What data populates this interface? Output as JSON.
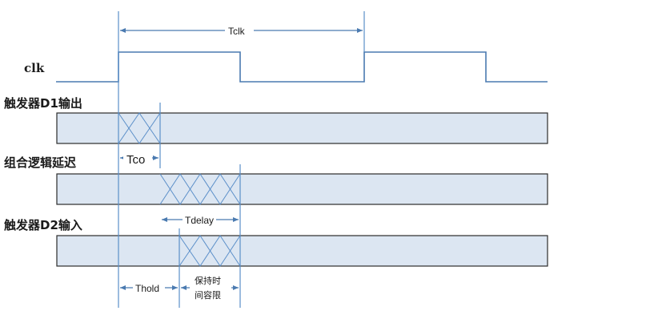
{
  "signals": {
    "clk": "clk",
    "d1_out": "触发器D1输出",
    "logic_delay": "组合逻辑延迟",
    "d2_in": "触发器D2输入"
  },
  "timings": {
    "tclk": "Tclk",
    "tco": "Tco",
    "tdelay": "Tdelay",
    "thold": "Thold",
    "hold_margin_line1": "保持时",
    "hold_margin_line2": "间容限"
  },
  "colors": {
    "waveform": "#4a7ab0",
    "bus_fill": "#dce6f2",
    "bus_border": "#2b2b2b",
    "marker": "#5b8fc9"
  }
}
